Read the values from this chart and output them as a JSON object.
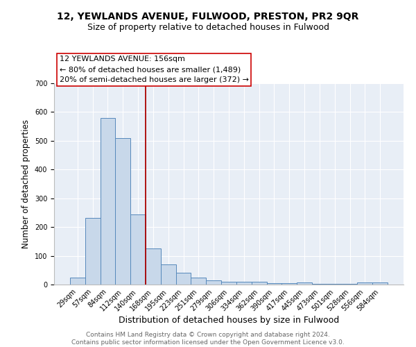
{
  "title": "12, YEWLANDS AVENUE, FULWOOD, PRESTON, PR2 9QR",
  "subtitle": "Size of property relative to detached houses in Fulwood",
  "xlabel": "Distribution of detached houses by size in Fulwood",
  "ylabel": "Number of detached properties",
  "bar_color": "#c8d8ea",
  "bar_edge_color": "#5588bb",
  "background_color": "#e8eef6",
  "grid_color": "white",
  "categories": [
    "29sqm",
    "57sqm",
    "84sqm",
    "112sqm",
    "140sqm",
    "168sqm",
    "195sqm",
    "223sqm",
    "251sqm",
    "279sqm",
    "306sqm",
    "334sqm",
    "362sqm",
    "390sqm",
    "417sqm",
    "445sqm",
    "473sqm",
    "501sqm",
    "528sqm",
    "556sqm",
    "584sqm"
  ],
  "values": [
    25,
    232,
    580,
    510,
    245,
    125,
    70,
    40,
    25,
    15,
    10,
    10,
    10,
    5,
    5,
    7,
    2,
    2,
    2,
    7,
    7
  ],
  "vline_x_index": 5,
  "vline_color": "#aa0000",
  "annotation_line1": "12 YEWLANDS AVENUE: 156sqm",
  "annotation_line2": "← 80% of detached houses are smaller (1,489)",
  "annotation_line3": "20% of semi-detached houses are larger (372) →",
  "ylim": [
    0,
    700
  ],
  "yticks": [
    0,
    100,
    200,
    300,
    400,
    500,
    600,
    700
  ],
  "footer": "Contains HM Land Registry data © Crown copyright and database right 2024.\nContains public sector information licensed under the Open Government Licence v3.0.",
  "title_fontsize": 10,
  "subtitle_fontsize": 9,
  "ylabel_fontsize": 8.5,
  "xlabel_fontsize": 9,
  "tick_fontsize": 7,
  "annotation_fontsize": 8,
  "footer_fontsize": 6.5
}
